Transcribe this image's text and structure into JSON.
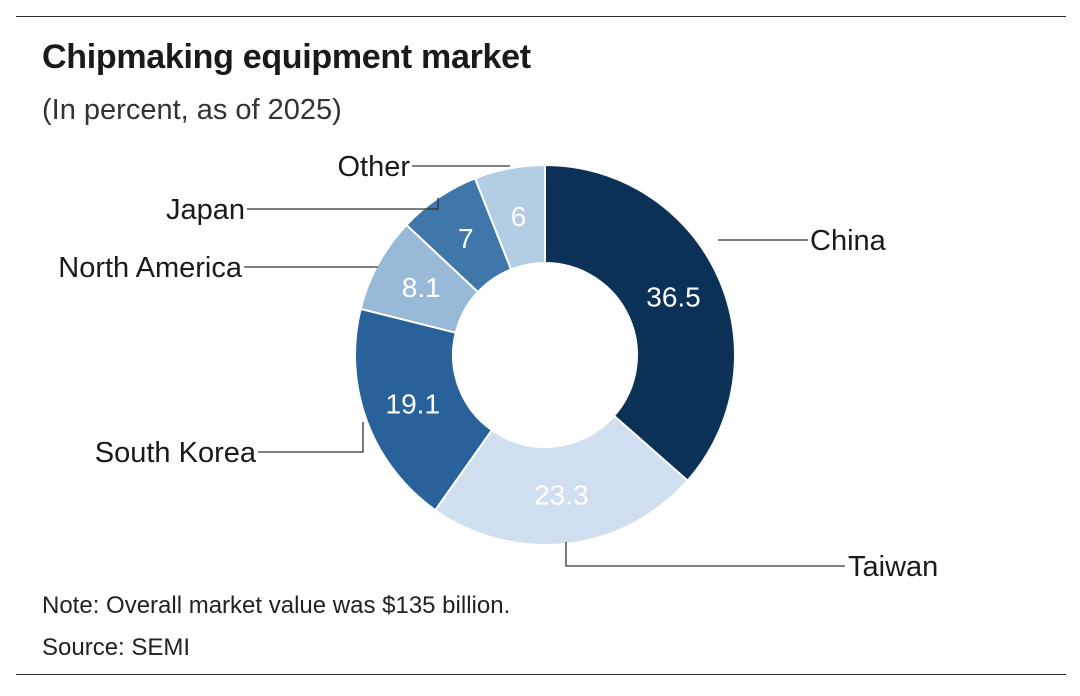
{
  "title": "Chipmaking equipment market",
  "subtitle": "(In percent, as of 2025)",
  "note": "Note: Overall market value was $135 billion.",
  "source": "Source: SEMI",
  "chart_data": {
    "type": "pie",
    "style": "donut",
    "unit": "percent",
    "categories": [
      "China",
      "Taiwan",
      "South Korea",
      "North America",
      "Japan",
      "Other"
    ],
    "values": [
      36.5,
      23.3,
      19.1,
      8.1,
      7,
      6
    ],
    "value_labels": [
      "36.5",
      "23.3",
      "19.1",
      "8.1",
      "7",
      "6"
    ],
    "colors": [
      "#0b3157",
      "#cfdff0",
      "#29629a",
      "#98bad8",
      "#3f77aa",
      "#b3cde5"
    ],
    "label_text_colors": [
      "#ffffff",
      "#ffffff",
      "#ffffff",
      "#ffffff",
      "#ffffff",
      "#ffffff"
    ],
    "start": "12 o'clock, clockwise",
    "legend": "none (leader-line labels)"
  }
}
